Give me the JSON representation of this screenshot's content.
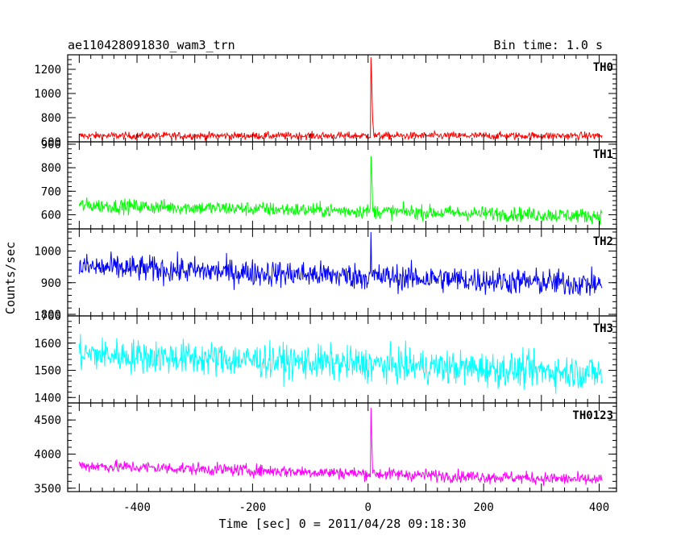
{
  "header": {
    "title": "ae110428091830_wam3_trn",
    "bin_time": "Bin time: 1.0 s"
  },
  "chart_data": {
    "type": "line",
    "ylabel": "Counts/sec",
    "xlabel": "Time [sec] 0 = 2011/04/28 09:18:30",
    "xlim": [
      -520,
      430
    ],
    "x_ticks": [
      -400,
      -200,
      0,
      200,
      400
    ],
    "x_range": [
      -500,
      405
    ],
    "grid": false,
    "series": [
      {
        "name": "TH0",
        "color": "#ff0000",
        "ylim": [
          600,
          1320
        ],
        "y_ticks": [
          600,
          800,
          1000,
          1200
        ],
        "baseline": 650,
        "noise": 22,
        "peak": [
          {
            "x": 5,
            "y": 1300
          },
          {
            "x": 6,
            "y": 1150
          },
          {
            "x": 7,
            "y": 950
          },
          {
            "x": 8,
            "y": 780
          },
          {
            "x": 9,
            "y": 720
          }
        ]
      },
      {
        "name": "TH1",
        "color": "#00ff00",
        "ylim": [
          540,
          910
        ],
        "y_ticks": [
          600,
          700,
          800,
          900
        ],
        "baseline_start": 640,
        "baseline_end": 595,
        "noise": 22,
        "peak": [
          {
            "x": 5,
            "y": 850
          },
          {
            "x": 6,
            "y": 780
          },
          {
            "x": 7,
            "y": 720
          }
        ]
      },
      {
        "name": "TH2",
        "color": "#0000ff",
        "ylim": [
          795,
          1070
        ],
        "y_ticks": [
          800,
          900,
          1000
        ],
        "baseline_start": 950,
        "baseline_end": 895,
        "noise": 30,
        "peak": [
          {
            "x": 5,
            "y": 1060
          }
        ]
      },
      {
        "name": "TH3",
        "color": "#00ffff",
        "ylim": [
          1380,
          1700
        ],
        "y_ticks": [
          1400,
          1500,
          1600,
          1700
        ],
        "baseline_start": 1560,
        "baseline_end": 1490,
        "noise": 45,
        "peak": []
      },
      {
        "name": "TH0123",
        "color": "#ff00ff",
        "ylim": [
          3450,
          4750
        ],
        "y_ticks": [
          3500,
          4000,
          4500
        ],
        "baseline_start": 3830,
        "baseline_end": 3620,
        "noise": 65,
        "peak": [
          {
            "x": 5,
            "y": 4680
          },
          {
            "x": 6,
            "y": 4300
          },
          {
            "x": 7,
            "y": 4000
          }
        ]
      }
    ]
  }
}
